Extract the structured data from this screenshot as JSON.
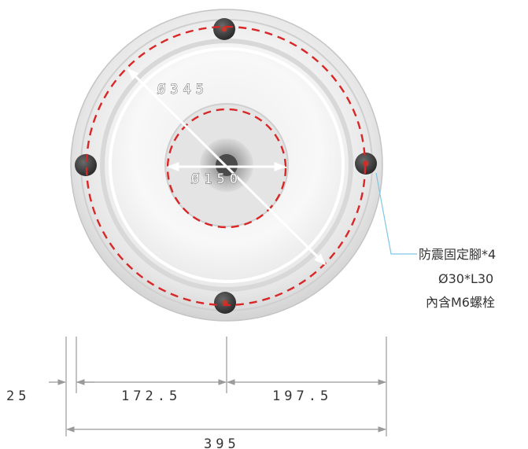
{
  "diagram": {
    "dimensions": {
      "outer_diameter_label": "Ø345",
      "inner_diameter_label": "Ø150",
      "offset_label": "25",
      "left_span_label": "172.5",
      "right_span_label": "197.5",
      "total_width_label": "395"
    },
    "callout": {
      "line1": "防震固定腳*4",
      "line2": "Ø30*L30",
      "line3": "內含M6螺栓"
    },
    "colors": {
      "dashed_circle": "#d92626",
      "dimension_line": "#9a9a9a",
      "callout_leader": "#7fc6e4",
      "diameter_arrow": "#ffffff",
      "foot": "#3a3a3a"
    }
  }
}
